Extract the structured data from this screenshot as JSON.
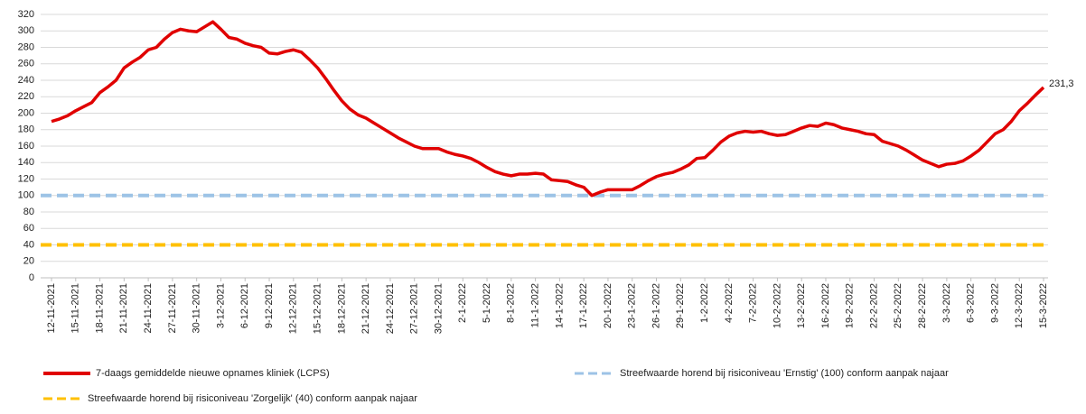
{
  "chart_data": {
    "type": "line",
    "categories": [
      "12-11-2021",
      null,
      null,
      "15-11-2021",
      null,
      null,
      "18-11-2021",
      null,
      null,
      "21-11-2021",
      null,
      null,
      "24-11-2021",
      null,
      null,
      "27-11-2021",
      null,
      null,
      "30-11-2021",
      null,
      null,
      "3-12-2021",
      null,
      null,
      "6-12-2021",
      null,
      null,
      "9-12-2021",
      null,
      null,
      "12-12-2021",
      null,
      null,
      "15-12-2021",
      null,
      null,
      "18-12-2021",
      null,
      null,
      "21-12-2021",
      null,
      null,
      "24-12-2021",
      null,
      null,
      "27-12-2021",
      null,
      null,
      "30-12-2021",
      null,
      null,
      "2-1-2022",
      null,
      null,
      "5-1-2022",
      null,
      null,
      "8-1-2022",
      null,
      null,
      "11-1-2022",
      null,
      null,
      "14-1-2022",
      null,
      null,
      "17-1-2022",
      null,
      null,
      "20-1-2022",
      null,
      null,
      "23-1-2022",
      null,
      null,
      "26-1-2022",
      null,
      null,
      "29-1-2022",
      null,
      null,
      "1-2-2022",
      null,
      null,
      "4-2-2022",
      null,
      null,
      "7-2-2022",
      null,
      null,
      "10-2-2022",
      null,
      null,
      "13-2-2022",
      null,
      null,
      "16-2-2022",
      null,
      null,
      "19-2-2022",
      null,
      null,
      "22-2-2022",
      null,
      null,
      "25-2-2022",
      null,
      null,
      "28-2-2022",
      null,
      null,
      "3-3-2022",
      null,
      null,
      "6-3-2022",
      null,
      null,
      "9-3-2022",
      null,
      null,
      "12-3-2022",
      null,
      null,
      "15-3-2022"
    ],
    "series": [
      {
        "name": "7-daags gemiddelde nieuwe opnames kliniek (LCPS)",
        "color": "#e00000",
        "values": [
          190,
          193,
          197,
          203,
          208,
          213,
          225,
          232,
          240,
          255,
          262,
          268,
          277,
          280,
          290,
          298,
          302,
          300,
          299,
          305,
          311,
          302,
          292,
          290,
          285,
          282,
          280,
          273,
          272,
          275,
          277,
          274,
          265,
          255,
          242,
          228,
          215,
          205,
          198,
          194,
          188,
          182,
          176,
          170,
          165,
          160,
          157,
          157,
          157,
          153,
          150,
          148,
          145,
          140,
          134,
          129,
          126,
          124,
          126,
          126,
          127,
          126,
          119,
          118,
          117,
          113,
          110,
          100,
          104,
          107,
          107,
          107,
          107,
          112,
          118,
          123,
          126,
          128,
          132,
          137,
          145,
          146,
          155,
          165,
          172,
          176,
          178,
          177,
          178,
          175,
          173,
          174,
          178,
          182,
          185,
          184,
          188,
          186,
          182,
          180,
          178,
          175,
          174,
          166,
          163,
          160,
          155,
          149,
          143,
          139,
          135,
          138,
          139,
          142,
          148,
          155,
          165,
          175,
          180,
          190,
          203,
          212,
          222,
          231.3
        ],
        "value_labels": [
          null,
          null,
          null,
          null,
          null,
          null,
          null,
          null,
          null,
          null,
          null,
          null,
          null,
          null,
          null,
          null,
          null,
          null,
          null,
          null,
          null,
          null,
          null,
          null,
          null,
          null,
          null,
          null,
          null,
          null,
          null,
          null,
          null,
          null,
          null,
          null,
          null,
          null,
          null,
          null,
          null,
          null,
          null,
          null,
          null,
          null,
          null,
          null,
          null,
          null,
          null,
          null,
          null,
          null,
          null,
          null,
          null,
          null,
          null,
          null,
          null,
          null,
          null,
          null,
          null,
          null,
          null,
          null,
          null,
          null,
          null,
          null,
          null,
          null,
          null,
          null,
          null,
          null,
          null,
          null,
          null,
          null,
          null,
          null,
          null,
          null,
          null,
          null,
          null,
          null,
          null,
          null,
          null,
          null,
          null,
          null,
          null,
          null,
          null,
          null,
          null,
          null,
          null,
          null,
          null,
          null,
          null,
          null,
          null,
          null,
          null,
          null,
          null,
          null,
          null,
          null,
          null,
          null,
          null,
          null,
          null,
          null,
          null,
          "231,3"
        ]
      }
    ],
    "reference_lines": [
      {
        "name": "Streefwaarde horend bij risiconiveau 'Ernstig' (100) conform aanpak najaar",
        "value": 100,
        "color": "#9dc3e6"
      },
      {
        "name": "Streefwaarde horend bij risiconiveau 'Zorgelijk' (40) conform aanpak najaar",
        "value": 40,
        "color": "#ffc000"
      }
    ],
    "ylim": [
      0,
      320
    ],
    "yticks": [
      0,
      20,
      40,
      60,
      80,
      100,
      120,
      140,
      160,
      180,
      200,
      220,
      240,
      260,
      280,
      300,
      320
    ],
    "grid": true
  }
}
